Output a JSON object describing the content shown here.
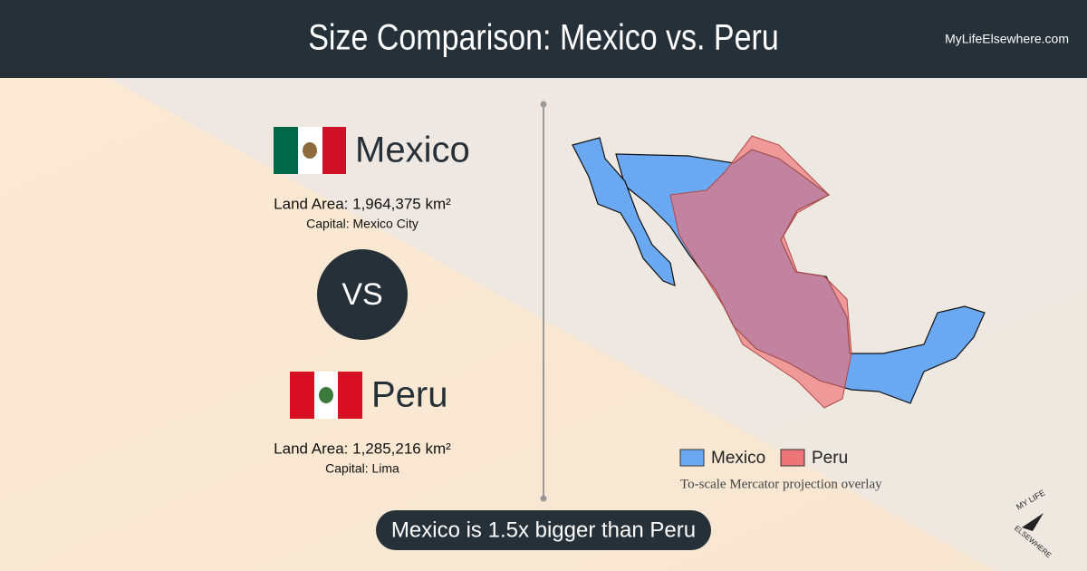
{
  "header": {
    "title": "Size Comparison: Mexico vs. Peru",
    "site": "MyLifeElsewhere.com"
  },
  "countries": [
    {
      "name": "Mexico",
      "land_area": "Land Area: 1,964,375 km²",
      "capital": "Capital: Mexico City"
    },
    {
      "name": "Peru",
      "land_area": "Land Area: 1,285,216 km²",
      "capital": "Capital: Lima"
    }
  ],
  "vs": "VS",
  "legend": [
    "Mexico",
    "Peru"
  ],
  "note": "To-scale Mercator projection overlay",
  "summary": "Mexico is 1.5x bigger than Peru",
  "logo": {
    "top": "MY LIFE",
    "bottom": "ELSEWHERE"
  }
}
